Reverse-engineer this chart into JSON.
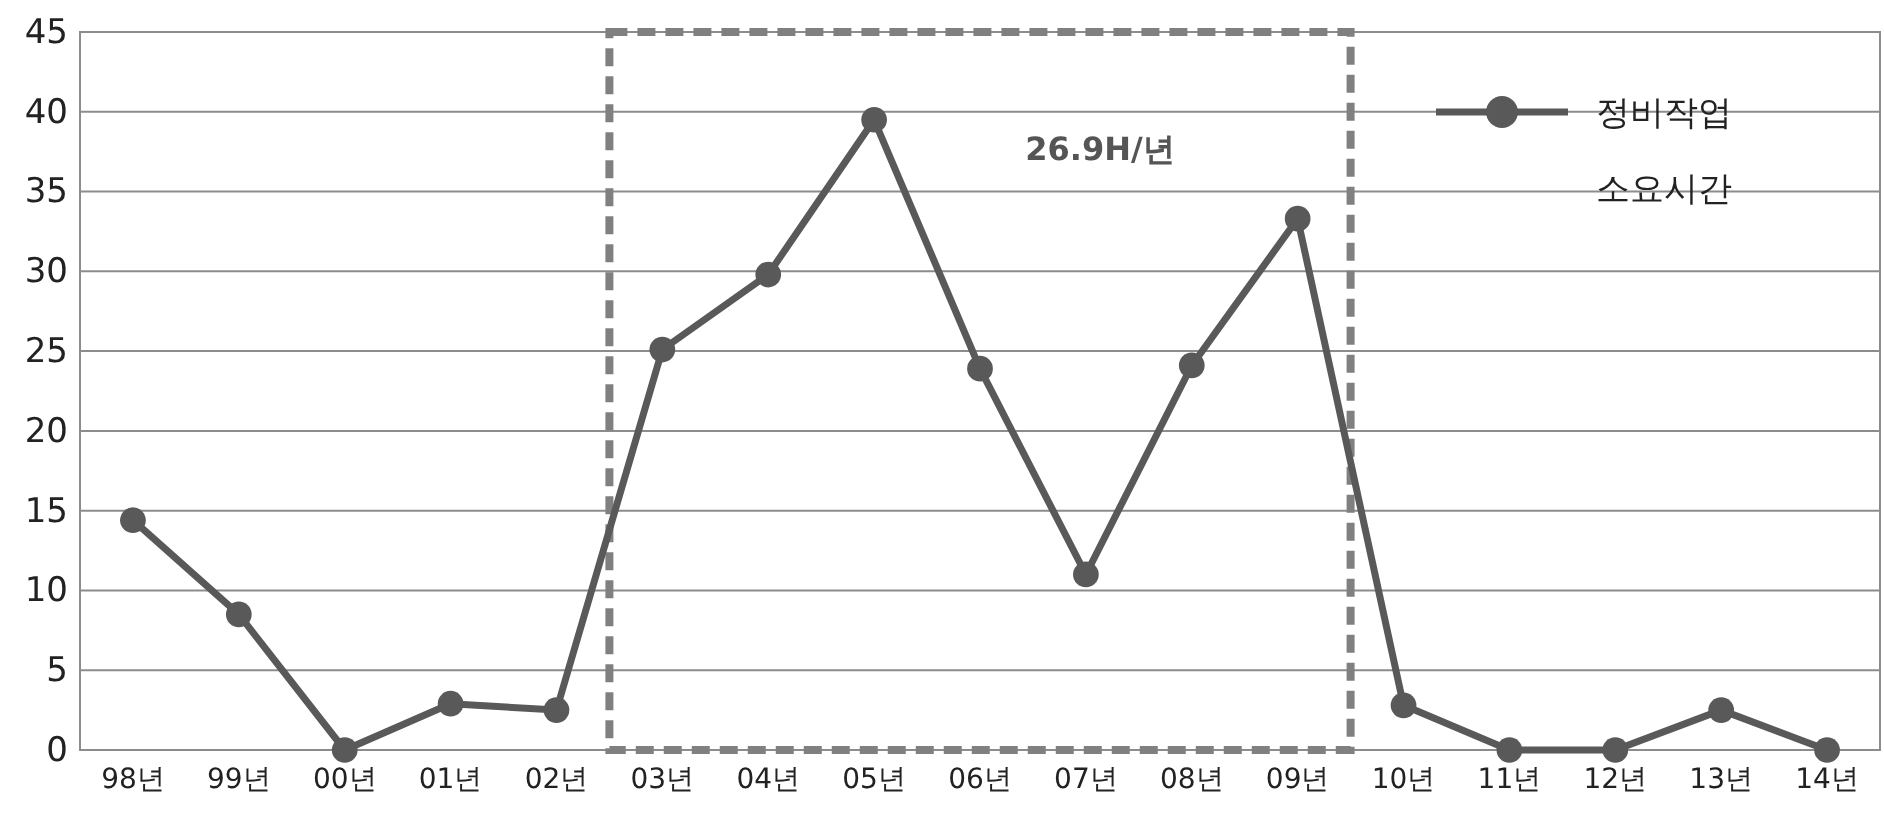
{
  "chart_data": {
    "type": "line",
    "categories": [
      "98년",
      "99년",
      "00년",
      "01년",
      "02년",
      "03년",
      "04년",
      "05년",
      "06년",
      "07년",
      "08년",
      "09년",
      "10년",
      "11년",
      "12년",
      "13년",
      "14년"
    ],
    "series": [
      {
        "name": "정비작업 소요시간",
        "color": "#595959",
        "values": [
          14.4,
          8.5,
          0,
          2.9,
          2.5,
          25.1,
          29.8,
          39.5,
          23.9,
          11,
          24.1,
          33.3,
          2.8,
          0,
          0,
          2.5,
          0
        ]
      }
    ],
    "ylim": [
      0,
      45
    ],
    "yticks": [
      0,
      5,
      10,
      15,
      20,
      25,
      30,
      35,
      40,
      45
    ],
    "grid": "y",
    "legend": "top right",
    "marker": "circle",
    "line_style": "solid",
    "annotations": [
      "26.9H/년"
    ]
  }
}
